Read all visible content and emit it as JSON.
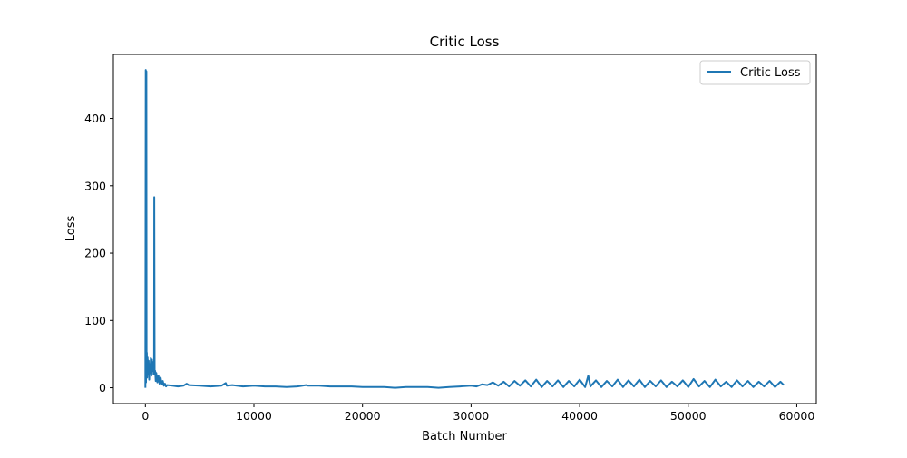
{
  "chart_data": {
    "type": "line",
    "title": "Critic Loss",
    "xlabel": "Batch Number",
    "ylabel": "Loss",
    "xlim": [
      -2950,
      61800
    ],
    "ylim": [
      -23.5,
      495
    ],
    "xticks": [
      0,
      10000,
      20000,
      30000,
      40000,
      50000,
      60000
    ],
    "xtick_labels": [
      "0",
      "10000",
      "20000",
      "30000",
      "40000",
      "50000",
      "60000"
    ],
    "yticks": [
      0,
      100,
      200,
      300,
      400
    ],
    "ytick_labels": [
      "0",
      "100",
      "200",
      "300",
      "400"
    ],
    "grid": false,
    "legend": {
      "position": "top-right",
      "entries": [
        "Critic Loss"
      ]
    },
    "colors": {
      "series": "#1f77b4",
      "axes": "#000000",
      "legend_border": "#cccccc"
    },
    "series": [
      {
        "name": "Critic Loss",
        "x": [
          0,
          30,
          60,
          90,
          110,
          130,
          160,
          200,
          250,
          300,
          350,
          400,
          450,
          500,
          550,
          600,
          650,
          700,
          750,
          800,
          820,
          850,
          900,
          950,
          1000,
          1100,
          1200,
          1300,
          1400,
          1500,
          1600,
          1700,
          1800,
          1900,
          2000,
          2500,
          3000,
          3500,
          3800,
          4000,
          5000,
          6000,
          7000,
          7400,
          7500,
          8000,
          9000,
          10000,
          11000,
          12000,
          13000,
          14000,
          14800,
          15000,
          16000,
          17000,
          18000,
          19000,
          20000,
          21000,
          22000,
          23000,
          24000,
          25000,
          26000,
          27000,
          28000,
          29000,
          30000,
          30500,
          31000,
          31500,
          32000,
          32500,
          33000,
          33500,
          34000,
          34500,
          35000,
          35500,
          36000,
          36500,
          37000,
          37500,
          38000,
          38500,
          39000,
          39500,
          40000,
          40500,
          40800,
          41000,
          41500,
          42000,
          42500,
          43000,
          43500,
          44000,
          44500,
          45000,
          45500,
          46000,
          46500,
          47000,
          47500,
          48000,
          48500,
          49000,
          49500,
          50000,
          50500,
          51000,
          51500,
          52000,
          52500,
          53000,
          53500,
          54000,
          54500,
          55000,
          55500,
          56000,
          56500,
          57000,
          57500,
          58000,
          58500,
          58800
        ],
        "y": [
          0,
          472,
          8,
          470,
          30,
          52,
          15,
          45,
          20,
          40,
          12,
          35,
          22,
          44,
          18,
          42,
          25,
          38,
          20,
          30,
          283,
          20,
          25,
          10,
          22,
          8,
          18,
          6,
          15,
          5,
          10,
          3,
          6,
          2,
          4,
          3,
          2,
          3,
          6,
          4,
          3,
          2,
          3,
          7,
          3,
          4,
          2,
          3,
          2,
          2,
          1,
          2,
          4,
          3,
          3,
          2,
          2,
          2,
          1,
          1,
          1,
          0,
          1,
          1,
          1,
          0,
          1,
          2,
          3,
          2,
          5,
          4,
          8,
          3,
          9,
          2,
          10,
          3,
          11,
          2,
          12,
          1,
          10,
          2,
          11,
          1,
          10,
          2,
          12,
          1,
          18,
          2,
          11,
          1,
          10,
          2,
          12,
          1,
          11,
          2,
          12,
          1,
          10,
          2,
          11,
          1,
          9,
          2,
          11,
          1,
          13,
          2,
          10,
          1,
          12,
          2,
          9,
          1,
          11,
          2,
          10,
          1,
          9,
          2,
          10,
          1,
          9,
          4
        ]
      }
    ]
  }
}
